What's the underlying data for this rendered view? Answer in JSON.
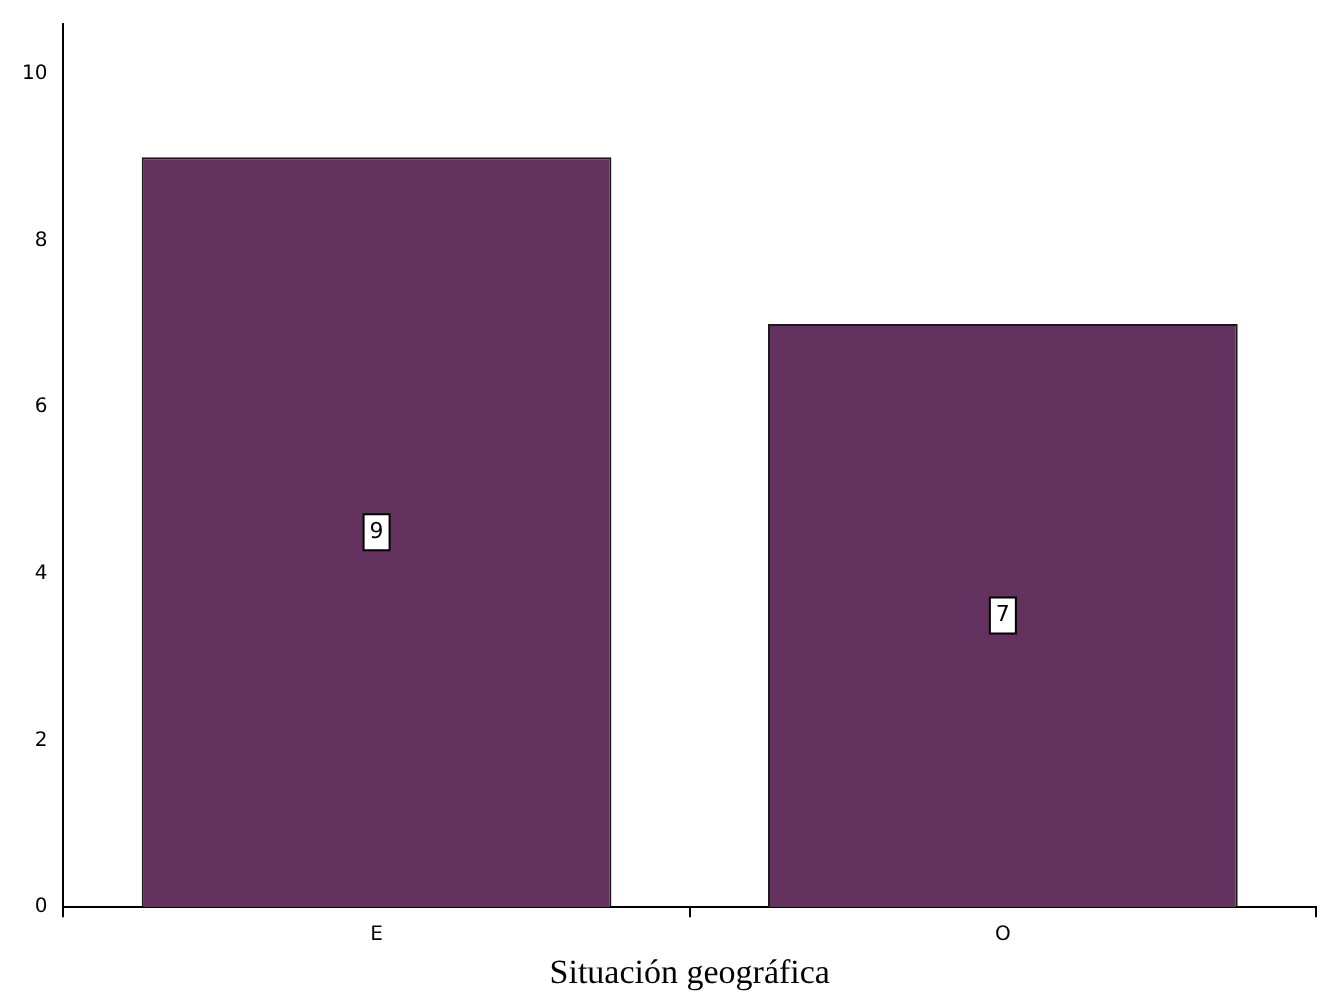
{
  "chart_data": {
    "type": "bar",
    "xlabel": "Situación geográfica",
    "categories": [
      "E",
      "O"
    ],
    "values": [
      9,
      7
    ],
    "color": "#63325f",
    "ylim": [
      0,
      10.6
    ],
    "yticks": [
      0,
      2,
      4,
      6,
      8,
      10
    ],
    "grid": false,
    "data_labels": true
  }
}
